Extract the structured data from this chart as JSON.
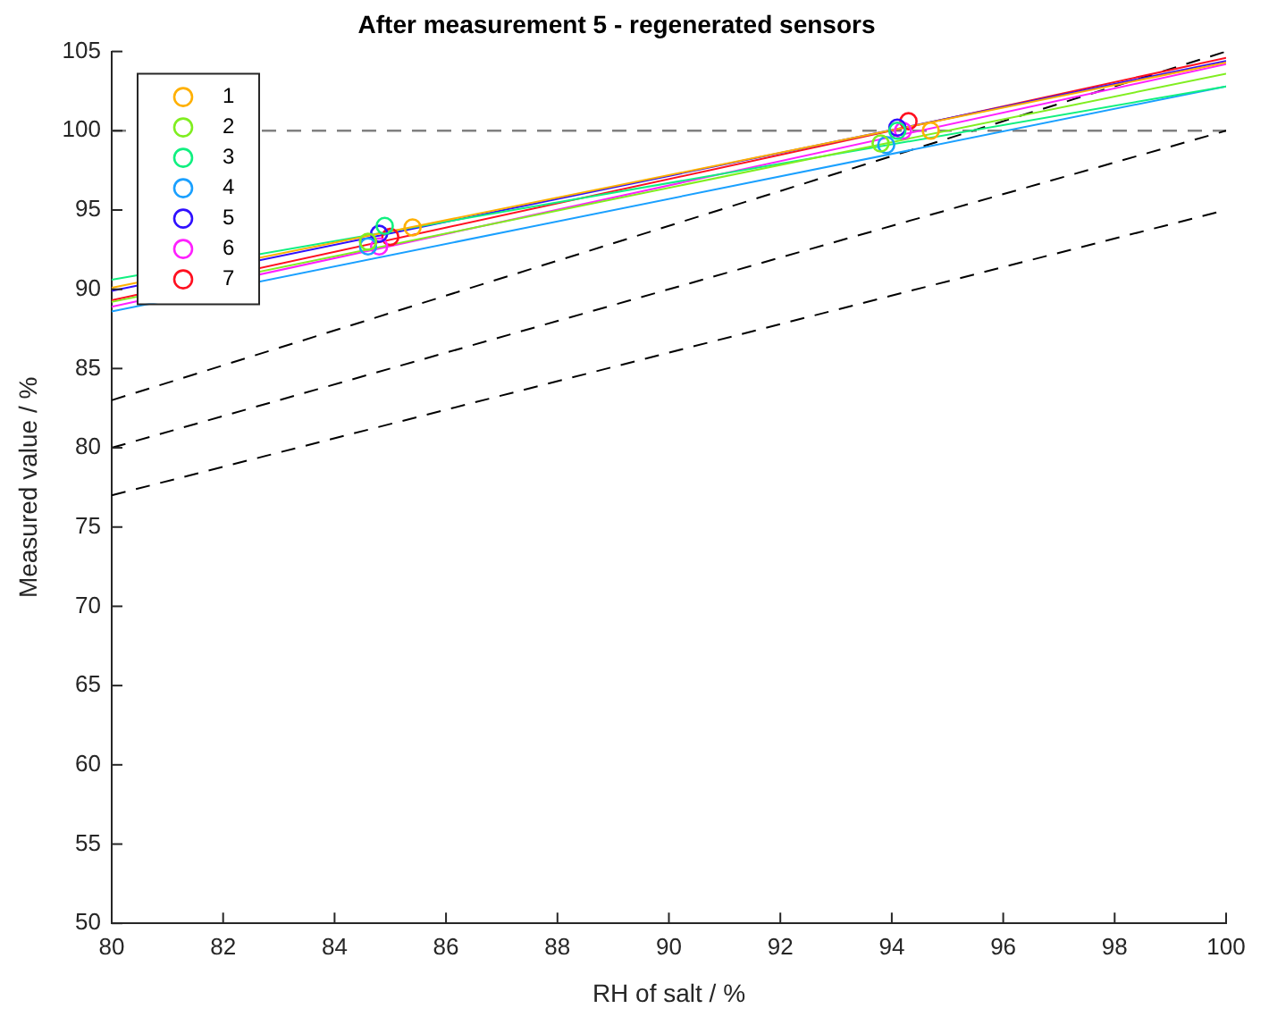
{
  "chart_data": {
    "type": "scatter",
    "title": "After measurement 5 - regenerated sensors",
    "xlabel": "RH of salt / %",
    "ylabel": "Measured value / %",
    "xlim": [
      80,
      100
    ],
    "xticks": [
      80,
      82,
      84,
      86,
      88,
      90,
      92,
      94,
      96,
      98,
      100
    ],
    "ylim": [
      50,
      105
    ],
    "yticks": [
      50,
      55,
      60,
      65,
      70,
      75,
      80,
      85,
      90,
      95,
      100,
      105
    ],
    "grid": false,
    "legend": "top left",
    "marker": "circle",
    "ref_lines": [
      {
        "axis": "y",
        "value": 100,
        "color": "#808080",
        "line_style": "dashed"
      }
    ],
    "series": [
      {
        "name": "1",
        "color": "#ffb000",
        "x": [
          85.4,
          94.7
        ],
        "values": [
          93.9,
          100.0
        ]
      },
      {
        "name": "2",
        "color": "#80ee20",
        "x": [
          84.6,
          93.8
        ],
        "values": [
          93.0,
          99.2
        ]
      },
      {
        "name": "3",
        "color": "#10f080",
        "x": [
          84.9,
          94.1
        ],
        "values": [
          94.0,
          100.0
        ]
      },
      {
        "name": "4",
        "color": "#1aa0ff",
        "x": [
          84.6,
          93.9
        ],
        "values": [
          92.7,
          99.1
        ]
      },
      {
        "name": "5",
        "color": "#3010ff",
        "x": [
          84.8,
          94.1
        ],
        "values": [
          93.5,
          100.2
        ]
      },
      {
        "name": "6",
        "color": "#ff20ff",
        "x": [
          84.8,
          94.2
        ],
        "values": [
          92.7,
          100.0
        ]
      },
      {
        "name": "7",
        "color": "#ff1020",
        "x": [
          85.0,
          94.3
        ],
        "values": [
          93.3,
          100.6
        ]
      },
      {
        "type": "line",
        "color": "#ffb000",
        "marker": "none",
        "x": [
          80,
          100
        ],
        "values": [
          90.1,
          104.3
        ]
      },
      {
        "type": "line",
        "color": "#80ee20",
        "marker": "none",
        "x": [
          80,
          100
        ],
        "values": [
          89.2,
          103.6
        ]
      },
      {
        "type": "line",
        "color": "#10f080",
        "marker": "none",
        "x": [
          80,
          100
        ],
        "values": [
          90.6,
          102.8
        ]
      },
      {
        "type": "line",
        "color": "#1aa0ff",
        "marker": "none",
        "x": [
          80,
          100
        ],
        "values": [
          88.6,
          102.8
        ]
      },
      {
        "type": "line",
        "color": "#3010ff",
        "marker": "none",
        "x": [
          80,
          100
        ],
        "values": [
          89.9,
          104.4
        ]
      },
      {
        "type": "line",
        "color": "#ff20ff",
        "marker": "none",
        "x": [
          80,
          100
        ],
        "values": [
          88.9,
          104.2
        ]
      },
      {
        "type": "line",
        "color": "#ff1020",
        "marker": "none",
        "x": [
          80,
          100
        ],
        "values": [
          89.3,
          104.6
        ]
      },
      {
        "type": "line",
        "color": "#000000",
        "marker": "none",
        "line_style": "dashed",
        "x": [
          80,
          100
        ],
        "values": [
          83,
          105
        ]
      },
      {
        "type": "line",
        "color": "#000000",
        "marker": "none",
        "line_style": "dashed",
        "x": [
          80,
          100
        ],
        "values": [
          80,
          100
        ]
      },
      {
        "type": "line",
        "color": "#000000",
        "marker": "none",
        "line_style": "dashed",
        "x": [
          80,
          100
        ],
        "values": [
          77,
          95
        ]
      }
    ]
  }
}
